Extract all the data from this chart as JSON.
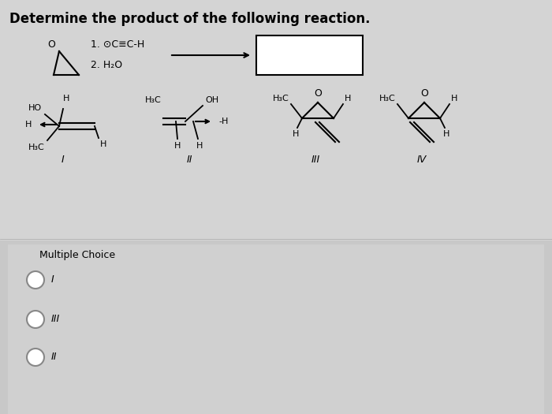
{
  "title": "Determine the product of the following reaction.",
  "title_fontsize": 12,
  "title_fontweight": "bold",
  "bg_top": "#d8d8d8",
  "bg_bottom": "#c8c8c8",
  "reagent1": "1. ⊙C≡C-H",
  "reagent2": "2. H₂O",
  "choice_label": "Multiple Choice",
  "choices": [
    "I",
    "III",
    "II"
  ]
}
